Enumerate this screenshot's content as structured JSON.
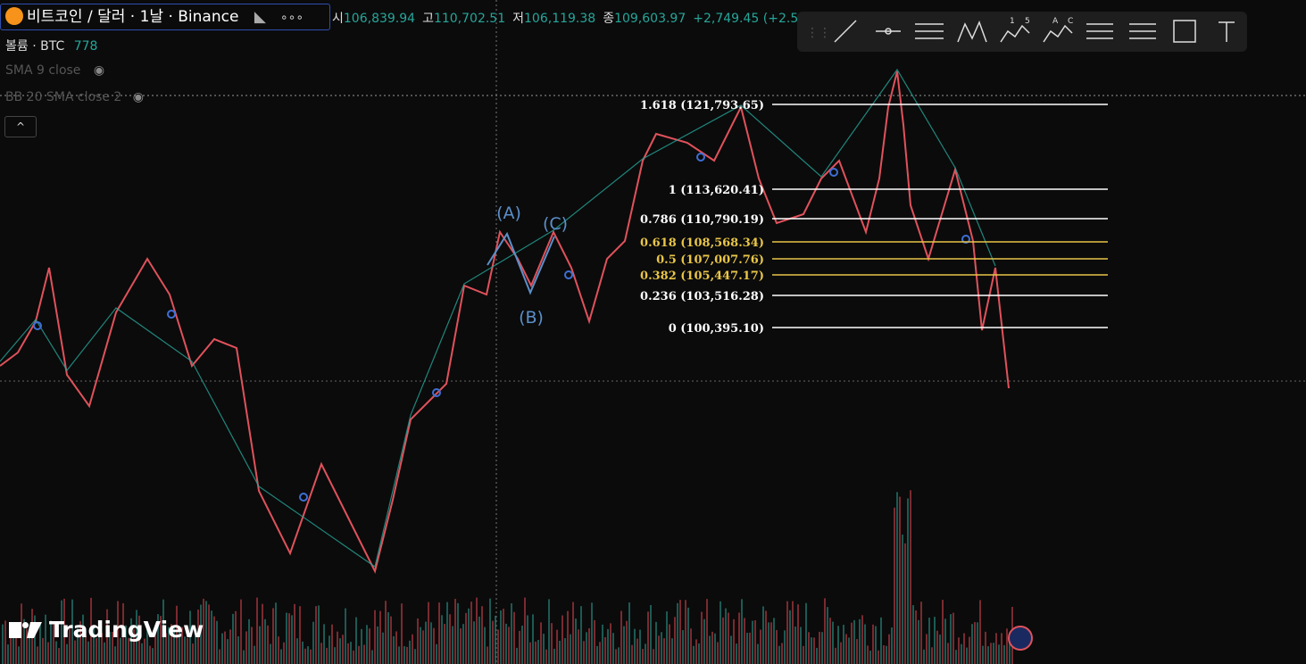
{
  "header": {
    "symbol": "비트코인 / 달러 · 1날 · Binance",
    "ohlc": [
      {
        "label": "시",
        "value": "106,839.94"
      },
      {
        "label": "고",
        "value": "110,702.51"
      },
      {
        "label": "저",
        "value": "106,119.38"
      },
      {
        "label": "종",
        "value": "109,603.97"
      }
    ],
    "change": "+2,749.45 (+2.5"
  },
  "indicators": {
    "volume_label": "볼륨 · BTC",
    "volume_value": "778",
    "sma": "SMA 9 close",
    "bb": "BB 20 SMA close 2"
  },
  "toolbar_texts": [
    "1",
    "5",
    "A",
    "C"
  ],
  "fibonacci": [
    {
      "label": "1.618 (121,793.65)",
      "color": "#ffffff"
    },
    {
      "label": "1 (113,620.41)",
      "color": "#ffffff"
    },
    {
      "label": "0.786 (110,790.19)",
      "color": "#ffffff"
    },
    {
      "label": "0.618 (108,568.34)",
      "color": "#e8c547"
    },
    {
      "label": "0.5 (107,007.76)",
      "color": "#e8c547"
    },
    {
      "label": "0.382 (105,447.17)",
      "color": "#e8c547"
    },
    {
      "label": "0.236 (103,516.28)",
      "color": "#ffffff"
    },
    {
      "label": "0 (100,395.10)",
      "color": "#ffffff"
    }
  ],
  "wave_labels": [
    "(A)",
    "(B)",
    "(C)"
  ],
  "watermark": "TradingView"
}
